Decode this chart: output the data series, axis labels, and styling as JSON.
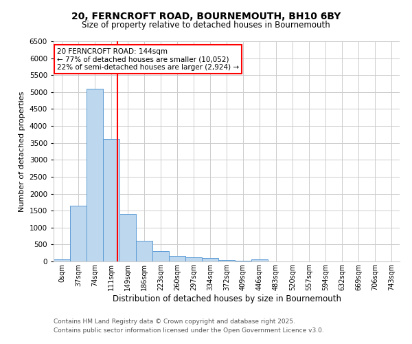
{
  "title1": "20, FERNCROFT ROAD, BOURNEMOUTH, BH10 6BY",
  "title2": "Size of property relative to detached houses in Bournemouth",
  "xlabel": "Distribution of detached houses by size in Bournemouth",
  "ylabel": "Number of detached properties",
  "categories": [
    "0sqm",
    "37sqm",
    "74sqm",
    "111sqm",
    "149sqm",
    "186sqm",
    "223sqm",
    "260sqm",
    "297sqm",
    "334sqm",
    "372sqm",
    "409sqm",
    "446sqm",
    "483sqm",
    "520sqm",
    "557sqm",
    "594sqm",
    "632sqm",
    "669sqm",
    "706sqm",
    "743sqm"
  ],
  "values": [
    65,
    1640,
    5100,
    3620,
    1410,
    610,
    310,
    160,
    130,
    95,
    45,
    20,
    55,
    0,
    0,
    0,
    0,
    0,
    0,
    0,
    0
  ],
  "bar_color": "#bdd7ee",
  "bar_edge_color": "#5b9bd5",
  "property_line_x": 3.87,
  "property_line_color": "#ff0000",
  "annotation_text": "20 FERNCROFT ROAD: 144sqm\n← 77% of detached houses are smaller (10,052)\n22% of semi-detached houses are larger (2,924) →",
  "annotation_box_color": "#ffffff",
  "annotation_box_edge": "#ff0000",
  "ylim": [
    0,
    6500
  ],
  "yticks": [
    0,
    500,
    1000,
    1500,
    2000,
    2500,
    3000,
    3500,
    4000,
    4500,
    5000,
    5500,
    6000,
    6500
  ],
  "footer1": "Contains HM Land Registry data © Crown copyright and database right 2025.",
  "footer2": "Contains public sector information licensed under the Open Government Licence v3.0.",
  "bg_color": "#ffffff",
  "grid_color": "#cccccc"
}
